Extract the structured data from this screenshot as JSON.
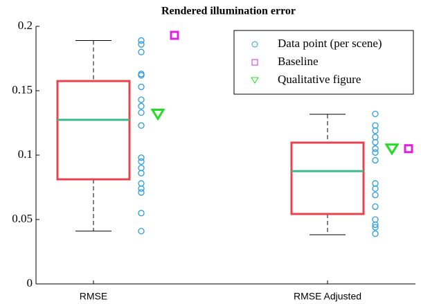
{
  "chart_data": {
    "type": "box",
    "title": "Rendered illumination error",
    "categories": [
      "RMSE",
      "RMSE Adjusted"
    ],
    "boxes": [
      {
        "whisker_low": 0.041,
        "q1": 0.0812,
        "median": 0.1274,
        "q3": 0.1575,
        "whisker_high": 0.189
      },
      {
        "whisker_low": 0.0382,
        "q1": 0.0543,
        "median": 0.0876,
        "q3": 0.1097,
        "whisker_high": 0.1317
      }
    ],
    "box_color": "#e8424f",
    "median_color": "#3cba8c",
    "series": [
      {
        "name": "Data point (per scene)",
        "color": "#2a9de0",
        "marker": "circle",
        "values": [
          [
            0.189,
            0.186,
            0.18,
            0.163,
            0.162,
            0.153,
            0.143,
            0.138,
            0.133,
            0.123,
            0.098,
            0.095,
            0.09,
            0.086,
            0.078,
            0.074,
            0.071,
            0.055,
            0.041
          ],
          [
            0.132,
            0.123,
            0.119,
            0.114,
            0.11,
            0.105,
            0.102,
            0.096,
            0.078,
            0.074,
            0.069,
            0.06,
            0.05,
            0.046,
            0.044,
            0.039
          ]
        ]
      },
      {
        "name": "Baseline",
        "color": "#e020e0",
        "marker": "square",
        "values": [
          0.193,
          0.105
        ]
      },
      {
        "name": "Qualitative figure",
        "color": "#22dd22",
        "marker": "triangle",
        "values": [
          0.132,
          0.105
        ]
      }
    ],
    "ylim": [
      0,
      0.2
    ],
    "yticks": [
      0,
      0.05,
      0.1,
      0.15,
      0.2
    ],
    "legend": "upper right"
  }
}
